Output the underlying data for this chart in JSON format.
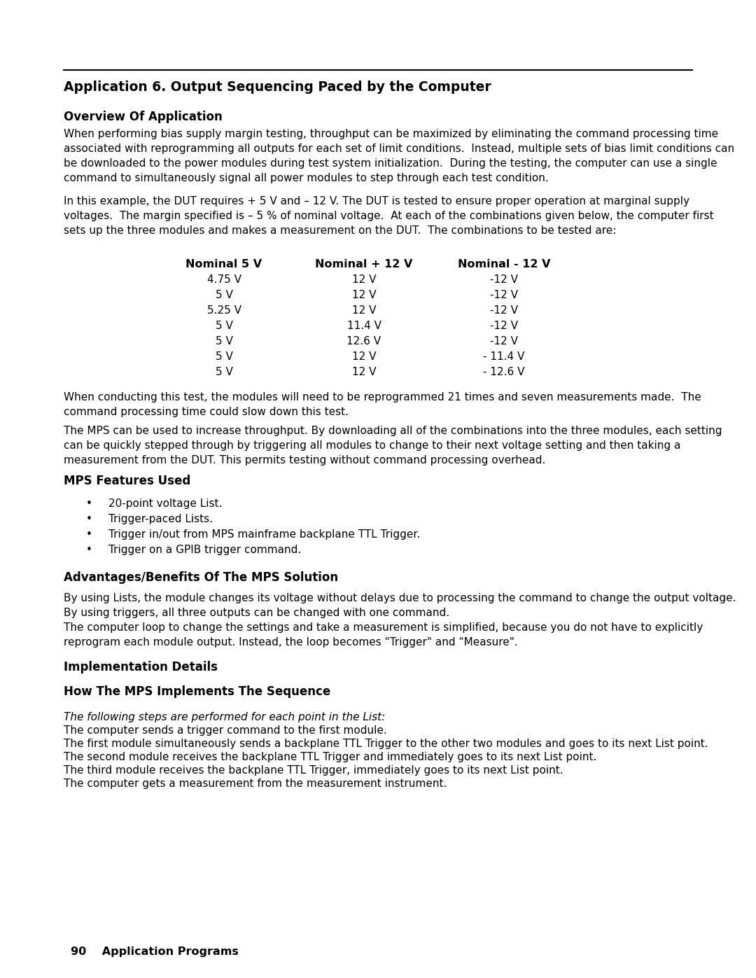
{
  "bg_color": "#ffffff",
  "text_color": "#000000",
  "page_title": "Application 6. Output Sequencing Paced by the Computer",
  "section1_heading": "Overview Of Application",
  "section1_para1": "When performing bias supply margin testing, throughput can be maximized by eliminating the command processing time\nassociated with reprogramming all outputs for each set of limit conditions.  Instead, multiple sets of bias limit conditions can\nbe downloaded to the power modules during test system initialization.  During the testing, the computer can use a single\ncommand to simultaneously signal all power modules to step through each test condition.",
  "section1_para2": "In this example, the DUT requires + 5 V and – 12 V. The DUT is tested to ensure proper operation at marginal supply\nvoltages.  The margin specified is – 5 % of nominal voltage.  At each of the combinations given below, the computer first\nsets up the three modules and makes a measurement on the DUT.  The combinations to be tested are:",
  "table_headers": [
    "Nominal 5 V",
    "Nominal + 12 V",
    "Nominal - 12 V"
  ],
  "table_col1": [
    "4.75 V",
    "5 V",
    "5.25 V",
    "5 V",
    "5 V",
    "5 V",
    "5 V"
  ],
  "table_col2": [
    "12 V",
    "12 V",
    "12 V",
    "11.4 V",
    "12.6 V",
    "12 V",
    "12 V"
  ],
  "table_col3": [
    "-12 V",
    "-12 V",
    "-12 V",
    "-12 V",
    "-12 V",
    "- 11.4 V",
    "- 12.6 V"
  ],
  "section1_para3": "When conducting this test, the modules will need to be reprogrammed 21 times and seven measurements made.  The\ncommand processing time could slow down this test.",
  "section1_para4": "The MPS can be used to increase throughput. By downloading all of the combinations into the three modules, each setting\ncan be quickly stepped through by triggering all modules to change to their next voltage setting and then taking a\nmeasurement from the DUT. This permits testing without command processing overhead.",
  "section2_heading": "MPS Features Used",
  "bullet_items": [
    "20-point voltage List.",
    "Trigger-paced Lists.",
    "Trigger in/out from MPS mainframe backplane TTL Trigger.",
    "Trigger on a GPIB trigger command."
  ],
  "section3_heading": "Advantages/Benefits Of The MPS Solution",
  "section3_para1": "By using Lists, the module changes its voltage without delays due to processing the command to change the output voltage.\nBy using triggers, all three outputs can be changed with one command.\nThe computer loop to change the settings and take a measurement is simplified, because you do not have to explicitly\nreprogram each module output. Instead, the loop becomes \"Trigger\" and \"Measure\".",
  "section4_heading": "Implementation Details",
  "section5_heading": "How The MPS Implements The Sequence",
  "italic_line": "The following steps are performed for each point in the List:",
  "sequence_lines": [
    "The computer sends a trigger command to the first module.",
    "The first module simultaneously sends a backplane TTL Trigger to the other two modules and goes to its next List point.",
    "The second module receives the backplane TTL Trigger and immediately goes to its next List point.",
    "The third module receives the backplane TTL Trigger, immediately goes to its next List point.",
    "The computer gets a measurement from the measurement instrument."
  ],
  "footer_text": "90    Application Programs",
  "body_font_size": 11.0,
  "heading_font_size": 12.0,
  "title_font_size": 13.5,
  "footer_font_size": 11.5
}
